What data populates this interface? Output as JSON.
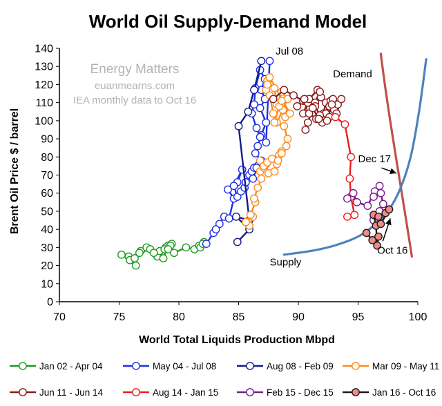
{
  "chart_data": {
    "type": "line",
    "title": "World Oil Supply-Demand Model",
    "xlabel": "World Total Liquids Production Mbpd",
    "ylabel": "Brent Oil Price $ / barrel",
    "xlim": [
      70,
      100
    ],
    "ylim": [
      0,
      140
    ],
    "xticks": [
      70,
      75,
      80,
      85,
      90,
      95,
      100
    ],
    "yticks": [
      0,
      10,
      20,
      30,
      40,
      50,
      60,
      70,
      80,
      90,
      100,
      110,
      120,
      130,
      140
    ],
    "grid": false,
    "legend_position": "bottom",
    "watermark": [
      "Energy Matters",
      "euanmearns.com",
      "IEA monthly data to Oct 16"
    ],
    "series": [
      {
        "name": "Jan 02 - Apr 04",
        "color": "#1f9a1f",
        "marker": "circle-open",
        "x": [
          75.2,
          75.8,
          76.4,
          75.9,
          76.3,
          76.8,
          77.3,
          76.7,
          77.6,
          78.2,
          78.7,
          79.1,
          79.4,
          78.9,
          78.4,
          77.9,
          78.8,
          79.3,
          79.1,
          79.6,
          80.6,
          81.3,
          81.7,
          82.1,
          81.8,
          82.0
        ],
        "y": [
          26,
          25,
          20,
          23,
          24,
          28,
          30,
          27,
          29,
          25,
          24,
          31,
          32,
          30,
          28,
          27,
          29,
          31,
          29,
          27,
          30,
          29,
          31,
          33,
          30,
          32
        ]
      },
      {
        "name": "May 04 - Jul 08",
        "color": "#1f2fe6",
        "marker": "circle-open",
        "x": [
          82.3,
          82.9,
          83.4,
          83.1,
          83.8,
          84.2,
          84.6,
          84.1,
          84.9,
          85.3,
          84.6,
          84.9,
          85.2,
          85.5,
          85.6,
          85.9,
          86.1,
          86.3,
          86.6,
          86.2,
          86.5,
          86.9,
          86.4,
          86.6,
          86.9,
          87.3,
          86.8,
          87.2,
          86.9,
          87.2,
          86.8,
          86.4,
          86.3,
          86.1,
          86.5,
          86.8,
          87.3,
          87.6
        ],
        "y": [
          32,
          38,
          43,
          40,
          47,
          46,
          57,
          62,
          66,
          73,
          64,
          58,
          61,
          63,
          66,
          70,
          72,
          74,
          75,
          68,
          74,
          78,
          82,
          86,
          92,
          99,
          107,
          112,
          117,
          123,
          128,
          118,
          109,
          104,
          96,
          91,
          88,
          133
        ]
      },
      {
        "name": "Aug 08 - Feb 09",
        "color": "#101c8c",
        "marker": "circle-open",
        "x": [
          86.9,
          86.3,
          85.8,
          85.0,
          85.9,
          84.8,
          85.9,
          84.9
        ],
        "y": [
          133,
          117,
          105,
          97,
          45,
          47,
          40,
          33
        ]
      },
      {
        "name": "Mar 09 - May 11",
        "color": "#ff8a1a",
        "marker": "circle-open",
        "x": [
          85.9,
          86.2,
          85.6,
          86.0,
          86.4,
          86.3,
          86.6,
          86.9,
          86.8,
          87.1,
          87.5,
          87.3,
          86.8,
          87.1,
          87.4,
          87.8,
          88.2,
          88.0,
          88.4,
          88.6,
          88.3,
          88.6,
          89.0,
          89.1,
          88.8,
          88.2,
          88.7,
          89.1,
          88.6,
          88.2,
          88.0,
          87.4,
          87.3,
          87.4,
          87.6,
          87.9,
          88.0,
          88.4,
          88.6,
          88.9,
          89.3,
          87.6
        ],
        "y": [
          42,
          47,
          44,
          48,
          55,
          57,
          63,
          68,
          72,
          74,
          71,
          76,
          78,
          75,
          77,
          79,
          76,
          72,
          81,
          83,
          78,
          82,
          86,
          90,
          97,
          99,
          106,
          112,
          116,
          109,
          118,
          122,
          117,
          120,
          114,
          104,
          99,
          108,
          111,
          102,
          104,
          124
        ]
      },
      {
        "name": "Jun 11 - Jun 14",
        "color": "#8b1a1a",
        "marker": "circle-open",
        "x": [
          87.9,
          88.8,
          89.6,
          90.4,
          89.9,
          90.6,
          91.0,
          90.4,
          90.8,
          91.3,
          91.9,
          91.6,
          90.9,
          91.4,
          91.8,
          92.3,
          92.1,
          92.6,
          93.0,
          92.7,
          93.3,
          92.9,
          92.3,
          91.8,
          91.4,
          90.5,
          90.9,
          91.5,
          92.0,
          92.6,
          93.2,
          93.6,
          92.8,
          92.4,
          91.7,
          91.2,
          90.6,
          90.8
        ],
        "y": [
          112,
          117,
          114,
          111,
          108,
          111,
          107,
          104,
          110,
          108,
          113,
          117,
          112,
          110,
          116,
          110,
          104,
          108,
          106,
          111,
          109,
          112,
          104,
          103,
          108,
          112,
          104,
          101,
          99,
          102,
          104,
          112,
          109,
          100,
          101,
          107,
          95,
          99
        ]
      },
      {
        "name": "Aug 14 - Jan 15",
        "color": "#ee1c1c",
        "marker": "circle-open",
        "x": [
          93.1,
          93.9,
          94.4,
          94.3,
          94.4,
          94.7,
          94.1
        ],
        "y": [
          102,
          98,
          80,
          68,
          58,
          48,
          47
        ]
      },
      {
        "name": "Feb 15 - Dec 15",
        "color": "#7a1a8c",
        "marker": "circle-open",
        "x": [
          94.1,
          94.6,
          94.9,
          95.8,
          96.4,
          96.8,
          96.3,
          96.9,
          97.1,
          96.8,
          96.5,
          96.3
        ],
        "y": [
          57,
          60,
          55,
          53,
          61,
          64,
          58,
          60,
          54,
          50,
          47,
          45
        ]
      },
      {
        "name": "Jan 16 - Oct 16",
        "color": "#1a1a1a",
        "marker": "circle-filled",
        "fill": "#f08a86",
        "x": [
          95.7,
          96.2,
          96.7,
          96.6,
          96.5,
          96.3,
          96.7,
          97.3,
          97.6,
          96.9
        ],
        "y": [
          38,
          34,
          36,
          31,
          42,
          48,
          47,
          49,
          51,
          43
        ]
      }
    ],
    "curves": [
      {
        "name": "Demand",
        "color": "#c0504d",
        "x": [
          96.9,
          97.6,
          98.4,
          99.5
        ],
        "y": [
          137,
          100,
          72,
          25
        ]
      },
      {
        "name": "Supply",
        "color": "#4f81bd",
        "x": [
          88.8,
          91.0,
          93.0,
          95.0,
          96.5,
          97.5,
          98.5,
          99.4,
          100.1,
          100.7
        ],
        "y": [
          26,
          28,
          31,
          36,
          43,
          50,
          62,
          80,
          105,
          134
        ]
      }
    ],
    "annotations": [
      {
        "text": "Jul 08",
        "x": 88.1,
        "y": 136.5
      },
      {
        "text": "Demand",
        "x": 92.9,
        "y": 124
      },
      {
        "text": "Dec 17",
        "x": 95.0,
        "y": 77,
        "arrow_to": [
          98.2,
          71
        ]
      },
      {
        "text": "Oct 16",
        "x": 96.6,
        "y": 26.5,
        "arrow_to": [
          97.7,
          46
        ]
      },
      {
        "text": "Supply",
        "x": 87.6,
        "y": 20
      }
    ]
  }
}
